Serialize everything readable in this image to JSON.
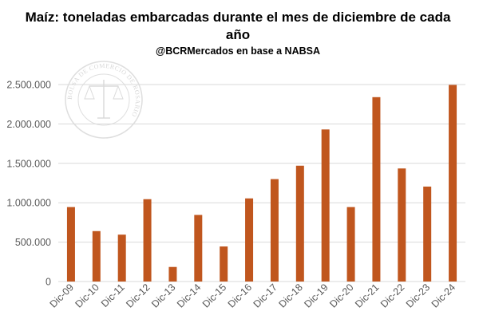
{
  "title_line1": "Maíz: toneladas embarcadas durante el mes de diciembre de cada",
  "title_line2": "año",
  "subtitle": "@BCRMercados en base a NABSA",
  "watermark": {
    "text": "BOLSA DE COMERCIO DE ROSARIO"
  },
  "colors": {
    "bar": "#C0561E",
    "grid": "#d9d9d9",
    "axis_text": "#595959"
  },
  "chart_data": {
    "type": "bar",
    "title": "Maíz: toneladas embarcadas durante el mes de diciembre de cada año",
    "subtitle": "@BCRMercados en base a NABSA",
    "xlabel": "",
    "ylabel": "",
    "categories": [
      "Dic-09",
      "Dic-10",
      "Dic-11",
      "Dic-12",
      "Dic-13",
      "Dic-14",
      "Dic-15",
      "Dic-16",
      "Dic-17",
      "Dic-18",
      "Dic-19",
      "Dic-20",
      "Dic-21",
      "Dic-22",
      "Dic-23",
      "Dic-24"
    ],
    "values": [
      945000,
      640000,
      595000,
      1045000,
      185000,
      845000,
      445000,
      1055000,
      1300000,
      1470000,
      1930000,
      945000,
      2340000,
      1435000,
      1205000,
      2495000
    ],
    "ylim": [
      0,
      2500000
    ],
    "yticks": [
      0,
      500000,
      1000000,
      1500000,
      2000000,
      2500000
    ],
    "ytick_labels": [
      "0",
      "500.000",
      "1.000.000",
      "1.500.000",
      "2.000.000",
      "2.500.000"
    ],
    "grid": true,
    "legend": "none"
  }
}
